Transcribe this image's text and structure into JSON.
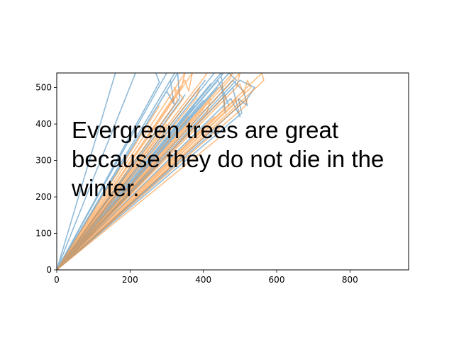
{
  "chart_data": {
    "type": "line",
    "title": "",
    "xlabel": "",
    "ylabel": "",
    "xlim": [
      0,
      960
    ],
    "ylim": [
      0,
      540
    ],
    "xticks": [
      0,
      200,
      400,
      600,
      800
    ],
    "yticks": [
      0,
      100,
      200,
      300,
      400,
      500
    ],
    "grid": false,
    "legend": "none",
    "annotation": "Evergreen trees are great\nbecause they do not die in the\nwinter.",
    "colors": {
      "blue": "#1f77b4",
      "orange": "#ff7f0e"
    },
    "line_alpha": 0.5,
    "series": [
      {
        "color": "#1f77b4",
        "points": [
          [
            0,
            0
          ],
          [
            160,
            540
          ],
          [
            0,
            0
          ],
          [
            215,
            540
          ],
          [
            0,
            0
          ],
          [
            300,
            540
          ],
          [
            0,
            0
          ],
          [
            322,
            540
          ],
          [
            0,
            0
          ],
          [
            335,
            470
          ],
          [
            330,
            540
          ],
          [
            0,
            0
          ],
          [
            405,
            520
          ],
          [
            0,
            0
          ],
          [
            430,
            540
          ],
          [
            0,
            0
          ],
          [
            448,
            540
          ],
          [
            460,
            430
          ],
          [
            450,
            500
          ],
          [
            470,
            450
          ],
          [
            440,
            520
          ],
          [
            0,
            0
          ],
          [
            455,
            540
          ],
          [
            0,
            0
          ],
          [
            475,
            470
          ],
          [
            490,
            440
          ],
          [
            500,
            420
          ],
          [
            480,
            500
          ],
          [
            0,
            0
          ],
          [
            420,
            510
          ],
          [
            0,
            0
          ],
          [
            440,
            500
          ],
          [
            0,
            0
          ],
          [
            400,
            465
          ],
          [
            0,
            0
          ],
          [
            375,
            450
          ],
          [
            0,
            0
          ],
          [
            350,
            480
          ],
          [
            0,
            0
          ],
          [
            505,
            430
          ],
          [
            495,
            470
          ],
          [
            520,
            450
          ],
          [
            510,
            490
          ],
          [
            480,
            520
          ],
          [
            0,
            0
          ],
          [
            300,
            490
          ],
          [
            320,
            455
          ],
          [
            310,
            520
          ],
          [
            0,
            0
          ],
          [
            470,
            540
          ],
          [
            490,
            520
          ],
          [
            0,
            0
          ],
          [
            440,
            390
          ],
          [
            0,
            0
          ],
          [
            500,
            520
          ],
          [
            540,
            500
          ],
          [
            520,
            470
          ],
          [
            0,
            0
          ],
          [
            280,
            515
          ],
          [
            270,
            540
          ]
        ]
      },
      {
        "color": "#ff7f0e",
        "points": [
          [
            0,
            0
          ],
          [
            280,
            450
          ],
          [
            0,
            0
          ],
          [
            300,
            400
          ],
          [
            0,
            0
          ],
          [
            330,
            465
          ],
          [
            320,
            500
          ],
          [
            345,
            470
          ],
          [
            0,
            0
          ],
          [
            350,
            520
          ],
          [
            360,
            490
          ],
          [
            370,
            540
          ],
          [
            0,
            0
          ],
          [
            390,
            500
          ],
          [
            380,
            470
          ],
          [
            0,
            0
          ],
          [
            410,
            430
          ],
          [
            420,
            470
          ],
          [
            0,
            0
          ],
          [
            455,
            440
          ],
          [
            460,
            480
          ],
          [
            0,
            0
          ],
          [
            470,
            520
          ],
          [
            480,
            540
          ],
          [
            0,
            0
          ],
          [
            500,
            510
          ],
          [
            510,
            480
          ],
          [
            520,
            520
          ],
          [
            530,
            500
          ],
          [
            0,
            0
          ],
          [
            520,
            470
          ],
          [
            515,
            450
          ],
          [
            0,
            0
          ],
          [
            560,
            540
          ],
          [
            565,
            520
          ],
          [
            555,
            510
          ],
          [
            0,
            0
          ],
          [
            380,
            410
          ],
          [
            0,
            0
          ],
          [
            400,
            440
          ],
          [
            0,
            0
          ],
          [
            430,
            420
          ],
          [
            0,
            0
          ],
          [
            450,
            460
          ],
          [
            0,
            0
          ],
          [
            360,
            420
          ],
          [
            0,
            0
          ],
          [
            480,
            450
          ],
          [
            490,
            470
          ],
          [
            0,
            0
          ],
          [
            440,
            360
          ],
          [
            0,
            0
          ],
          [
            420,
            380
          ],
          [
            0,
            0
          ],
          [
            490,
            500
          ],
          [
            500,
            540
          ],
          [
            0,
            0
          ],
          [
            340,
            500
          ],
          [
            350,
            540
          ],
          [
            0,
            0
          ],
          [
            400,
            525
          ],
          [
            410,
            540
          ]
        ]
      }
    ]
  }
}
